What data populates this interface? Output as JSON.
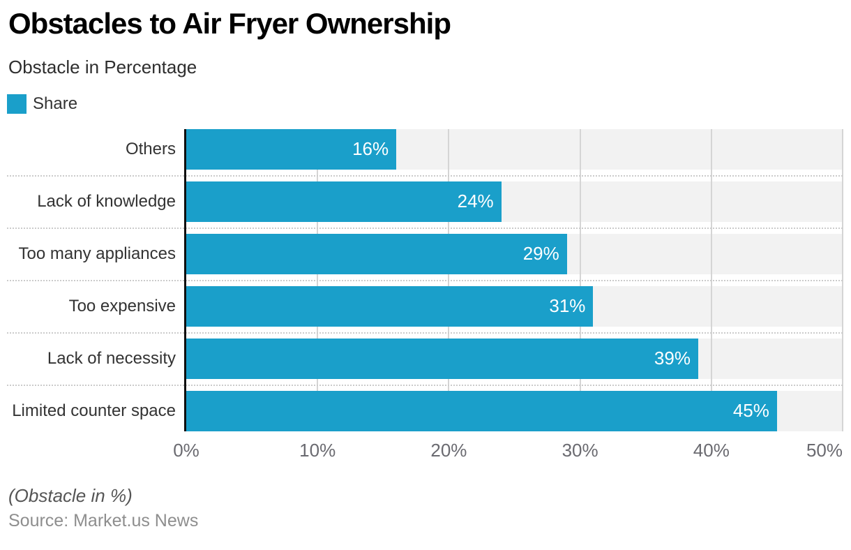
{
  "title": "Obstacles to Air Fryer Ownership",
  "subtitle": "Obstacle in Percentage",
  "legend": {
    "label": "Share",
    "swatch_color": "#1A9FCA"
  },
  "chart_data": {
    "type": "bar",
    "orientation": "horizontal",
    "title": "Obstacles to Air Fryer Ownership",
    "subtitle": "Obstacle in Percentage",
    "categories": [
      "Others",
      "Lack of knowledge",
      "Too many appliances",
      "Too expensive",
      "Lack of necessity",
      "Limited counter space"
    ],
    "series": [
      {
        "name": "Share",
        "values": [
          16,
          24,
          29,
          31,
          39,
          45
        ]
      }
    ],
    "value_suffix": "%",
    "xlabel": "",
    "ylabel": "",
    "xlim": [
      0,
      50
    ],
    "x_ticks": [
      0,
      10,
      20,
      30,
      40,
      50
    ],
    "x_tick_labels": [
      "0%",
      "10%",
      "20%",
      "30%",
      "40%",
      "50%"
    ],
    "grid": "vertical gridlines + dotted row separators",
    "legend_position": "top-left",
    "bar_color": "#1A9FCA",
    "track_color": "#F2F2F2",
    "value_label_color": "#FFFFFF"
  },
  "footer": {
    "note": "(Obstacle in %)",
    "source": "Source: Market.us News"
  }
}
